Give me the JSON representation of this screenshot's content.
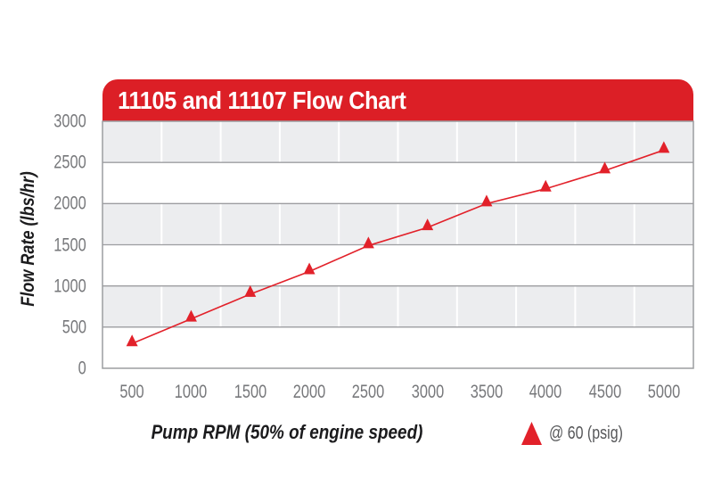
{
  "chart_data": {
    "type": "line",
    "title": "11105 and 11107 Flow Chart",
    "xlabel": "Pump RPM (50% of engine speed)",
    "ylabel": "Flow Rate (lbs/hr)",
    "x": [
      500,
      1000,
      1500,
      2000,
      2500,
      3000,
      3500,
      4000,
      4500,
      5000
    ],
    "series": [
      {
        "name": "@ 60 (psig)",
        "marker": "triangle-up",
        "values": [
          300,
          600,
          900,
          1175,
          1490,
          1710,
          2000,
          2180,
          2400,
          2650
        ]
      }
    ],
    "ylim": [
      0,
      3000
    ],
    "y_ticks": [
      0,
      500,
      1000,
      1500,
      2000,
      2500,
      3000
    ],
    "grid": "horizontal gray lines, alternating gray/white row bands, white vertical column separators",
    "legend_position": "below-plot-right"
  },
  "legend": {
    "label": "@ 60 (psig)",
    "marker_icon": "triangle-up-icon"
  },
  "colors": {
    "banner_red": "#DC1F26",
    "line_red": "#E2212A",
    "band_gray": "#ECEDEF",
    "band_white": "#FFFFFF",
    "grid_gray": "#9C9DA0",
    "vertical_grid_white": "#FFFFFF",
    "tick_label_gray": "#77787B",
    "axis_title_black": "#1B1B1D",
    "legend_text_gray": "#565759",
    "title_text_white": "#FFFFFF"
  }
}
